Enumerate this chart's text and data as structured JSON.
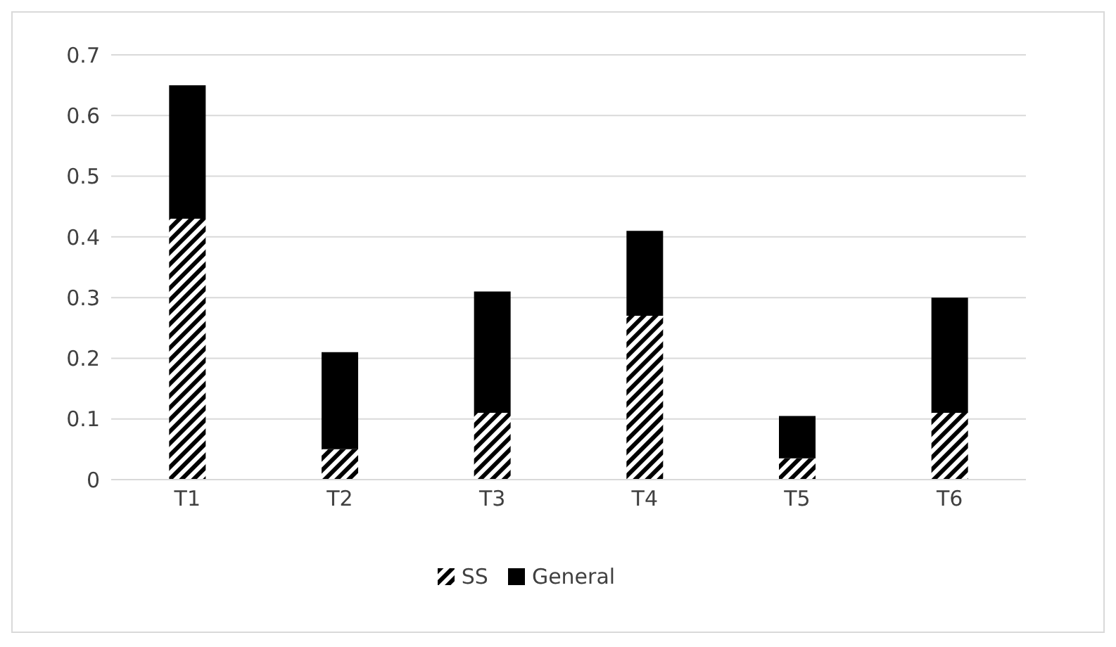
{
  "chart_data": {
    "type": "bar",
    "stacked": true,
    "categories": [
      "T1",
      "T2",
      "T3",
      "T4",
      "T5",
      "T6"
    ],
    "series": [
      {
        "name": "SS",
        "color": "#000000",
        "values": [
          0.43,
          0.05,
          0.11,
          0.27,
          0.035,
          0.11
        ]
      },
      {
        "name": "General",
        "color": "#000000",
        "values": [
          0.22,
          0.16,
          0.2,
          0.14,
          0.07,
          0.19
        ]
      }
    ],
    "ylim": [
      0,
      0.7
    ],
    "yticks": [
      0,
      0.1,
      0.2,
      0.3,
      0.4,
      0.5,
      0.6,
      0.7
    ],
    "grid": "y",
    "legend": "bottom"
  }
}
